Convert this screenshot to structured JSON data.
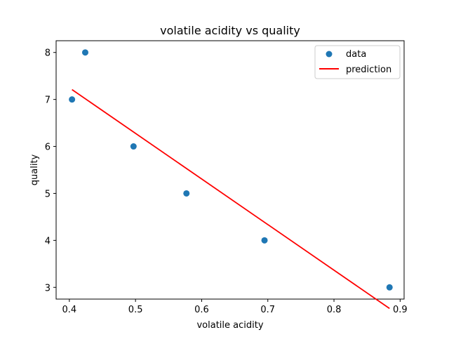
{
  "chart_data": {
    "type": "scatter",
    "title": "volatile acidity vs quality",
    "xlabel": "volatile acidity",
    "ylabel": "quality",
    "xlim": [
      0.38,
      0.906
    ],
    "ylim": [
      2.75,
      8.25
    ],
    "xticks": [
      0.4,
      0.5,
      0.6,
      0.7,
      0.8,
      0.9
    ],
    "xtick_labels": [
      "0.4",
      "0.5",
      "0.6",
      "0.7",
      "0.8",
      "0.9"
    ],
    "yticks": [
      3,
      4,
      5,
      6,
      7,
      8
    ],
    "ytick_labels": [
      "3",
      "4",
      "5",
      "6",
      "7",
      "8"
    ],
    "grid": false,
    "legend": {
      "placement": "top-right",
      "entries": [
        {
          "label": "data",
          "marker": "circle",
          "color": "#1f77b4"
        },
        {
          "label": "prediction",
          "marker": "line",
          "color": "#ff0000"
        }
      ]
    },
    "series": [
      {
        "name": "data",
        "kind": "scatter",
        "color": "#1f77b4",
        "points": [
          {
            "x": 0.404,
            "y": 7
          },
          {
            "x": 0.424,
            "y": 8
          },
          {
            "x": 0.497,
            "y": 6
          },
          {
            "x": 0.577,
            "y": 5
          },
          {
            "x": 0.695,
            "y": 4
          },
          {
            "x": 0.884,
            "y": 3
          }
        ]
      },
      {
        "name": "prediction",
        "kind": "line",
        "color": "#ff0000",
        "points": [
          {
            "x": 0.404,
            "y": 7.21
          },
          {
            "x": 0.884,
            "y": 2.55
          }
        ]
      }
    ]
  }
}
